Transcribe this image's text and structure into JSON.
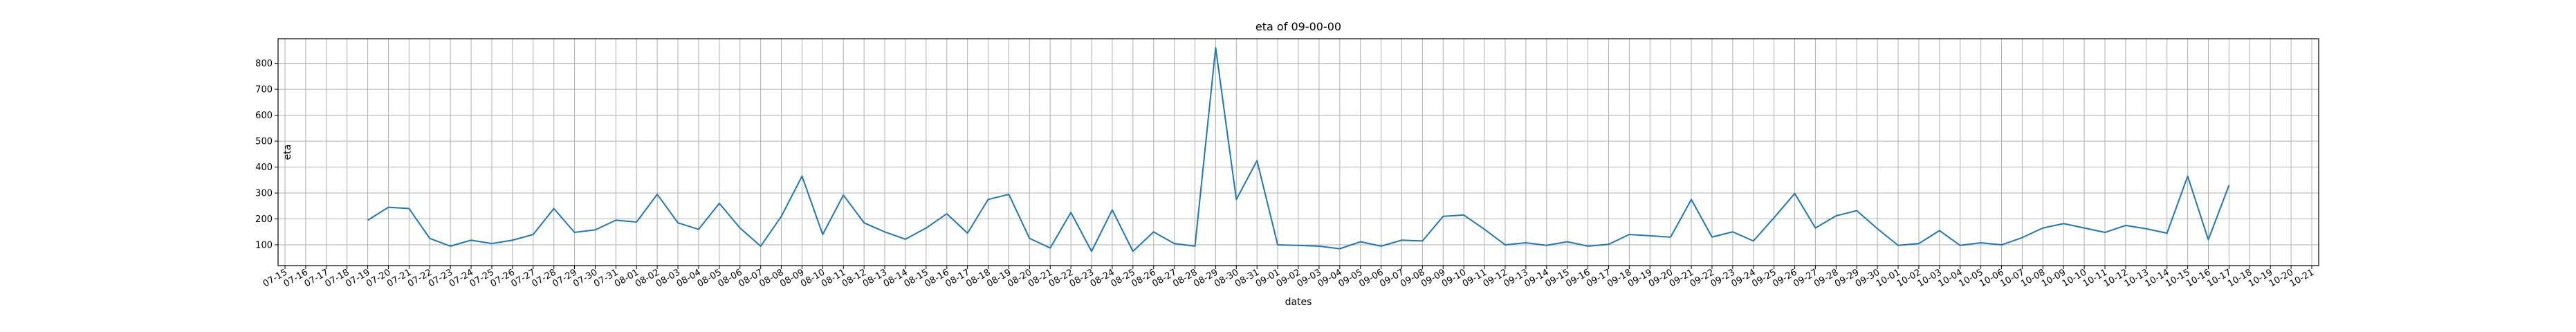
{
  "chart_data": {
    "type": "line",
    "title": "eta of 09-00-00",
    "xlabel": "dates",
    "ylabel": "eta",
    "grid": true,
    "line_color": "#1f77b4",
    "ylim": [
      20,
      895
    ],
    "yticks": [
      100,
      200,
      300,
      400,
      500,
      600,
      700,
      800
    ],
    "x_dates": [
      "07-15",
      "07-16",
      "07-17",
      "07-18",
      "07-19",
      "07-20",
      "07-21",
      "07-22",
      "07-23",
      "07-24",
      "07-25",
      "07-26",
      "07-27",
      "07-28",
      "07-29",
      "07-30",
      "07-31",
      "08-01",
      "08-02",
      "08-03",
      "08-04",
      "08-05",
      "08-06",
      "08-07",
      "08-08",
      "08-09",
      "08-10",
      "08-11",
      "08-12",
      "08-13",
      "08-14",
      "08-15",
      "08-16",
      "08-17",
      "08-18",
      "08-19",
      "08-20",
      "08-21",
      "08-22",
      "08-23",
      "08-24",
      "08-25",
      "08-26",
      "08-27",
      "08-28",
      "08-29",
      "08-30",
      "08-31",
      "09-01",
      "09-02",
      "09-03",
      "09-04",
      "09-05",
      "09-06",
      "09-07",
      "09-08",
      "09-09",
      "09-10",
      "09-11",
      "09-12",
      "09-13",
      "09-14",
      "09-15",
      "09-16",
      "09-17",
      "09-18",
      "09-19",
      "09-20",
      "09-21",
      "09-22",
      "09-23",
      "09-24",
      "09-25",
      "09-26",
      "09-27",
      "09-28",
      "09-29",
      "09-30",
      "10-01",
      "10-02",
      "10-03",
      "10-04",
      "10-05",
      "10-06",
      "10-07",
      "10-08",
      "10-09",
      "10-10",
      "10-11",
      "10-12",
      "10-13",
      "10-14",
      "10-15",
      "10-16",
      "10-17",
      "10-18",
      "10-19",
      "10-20",
      "10-21"
    ],
    "series": [
      {
        "points": [
          [
            "07-19",
            195
          ],
          [
            "07-20",
            245
          ],
          [
            "07-21",
            240
          ],
          [
            "07-22",
            125
          ],
          [
            "07-23",
            95
          ],
          [
            "07-24",
            118
          ],
          [
            "07-25",
            105
          ],
          [
            "07-26",
            118
          ],
          [
            "07-27",
            140
          ],
          [
            "07-28",
            240
          ],
          [
            "07-29",
            148
          ],
          [
            "07-30",
            158
          ],
          [
            "07-31",
            195
          ],
          [
            "08-01",
            188
          ],
          [
            "08-02",
            295
          ],
          [
            "08-03",
            185
          ],
          [
            "08-04",
            160
          ],
          [
            "08-05",
            260
          ],
          [
            "08-06",
            165
          ],
          [
            "08-07",
            95
          ],
          [
            "08-08",
            210
          ],
          [
            "08-09",
            365
          ],
          [
            "08-10",
            140
          ],
          [
            "08-11",
            292
          ],
          [
            "08-12",
            185
          ],
          [
            "08-13",
            150
          ],
          [
            "08-14",
            122
          ],
          [
            "08-15",
            165
          ],
          [
            "08-16",
            220
          ],
          [
            "08-17",
            145
          ],
          [
            "08-18",
            275
          ],
          [
            "08-19",
            295
          ],
          [
            "08-20",
            125
          ],
          [
            "08-21",
            88
          ],
          [
            "08-22",
            225
          ],
          [
            "08-23",
            75
          ],
          [
            "08-24",
            235
          ],
          [
            "08-25",
            75
          ],
          [
            "08-26",
            150
          ],
          [
            "08-27",
            105
          ],
          [
            "08-28",
            95
          ],
          [
            "08-29",
            860
          ],
          [
            "08-30",
            275
          ],
          [
            "08-31",
            425
          ],
          [
            "09-01",
            100
          ],
          [
            "09-02",
            98
          ],
          [
            "09-03",
            95
          ],
          [
            "09-04",
            85
          ],
          [
            "09-05",
            112
          ],
          [
            "09-06",
            95
          ],
          [
            "09-07",
            118
          ],
          [
            "09-08",
            115
          ],
          [
            "09-09",
            210
          ],
          [
            "09-10",
            215
          ],
          [
            "09-11",
            160
          ],
          [
            "09-12",
            100
          ],
          [
            "09-13",
            108
          ],
          [
            "09-14",
            98
          ],
          [
            "09-15",
            112
          ],
          [
            "09-16",
            95
          ],
          [
            "09-17",
            102
          ],
          [
            "09-18",
            140
          ],
          [
            "09-19",
            135
          ],
          [
            "09-20",
            130
          ],
          [
            "09-21",
            275
          ],
          [
            "09-22",
            130
          ],
          [
            "09-23",
            150
          ],
          [
            "09-24",
            115
          ],
          [
            "09-25",
            205
          ],
          [
            "09-26",
            298
          ],
          [
            "09-27",
            165
          ],
          [
            "09-28",
            212
          ],
          [
            "09-29",
            232
          ],
          [
            "09-30",
            162
          ],
          [
            "10-01",
            98
          ],
          [
            "10-02",
            105
          ],
          [
            "10-03",
            155
          ],
          [
            "10-04",
            98
          ],
          [
            "10-05",
            108
          ],
          [
            "10-06",
            100
          ],
          [
            "10-07",
            128
          ],
          [
            "10-08",
            165
          ],
          [
            "10-09",
            182
          ],
          [
            "10-10",
            165
          ],
          [
            "10-11",
            148
          ],
          [
            "10-12",
            175
          ],
          [
            "10-13",
            162
          ],
          [
            "10-14",
            145
          ],
          [
            "10-15",
            365
          ],
          [
            "10-16",
            120
          ],
          [
            "10-17",
            330
          ]
        ]
      }
    ]
  }
}
